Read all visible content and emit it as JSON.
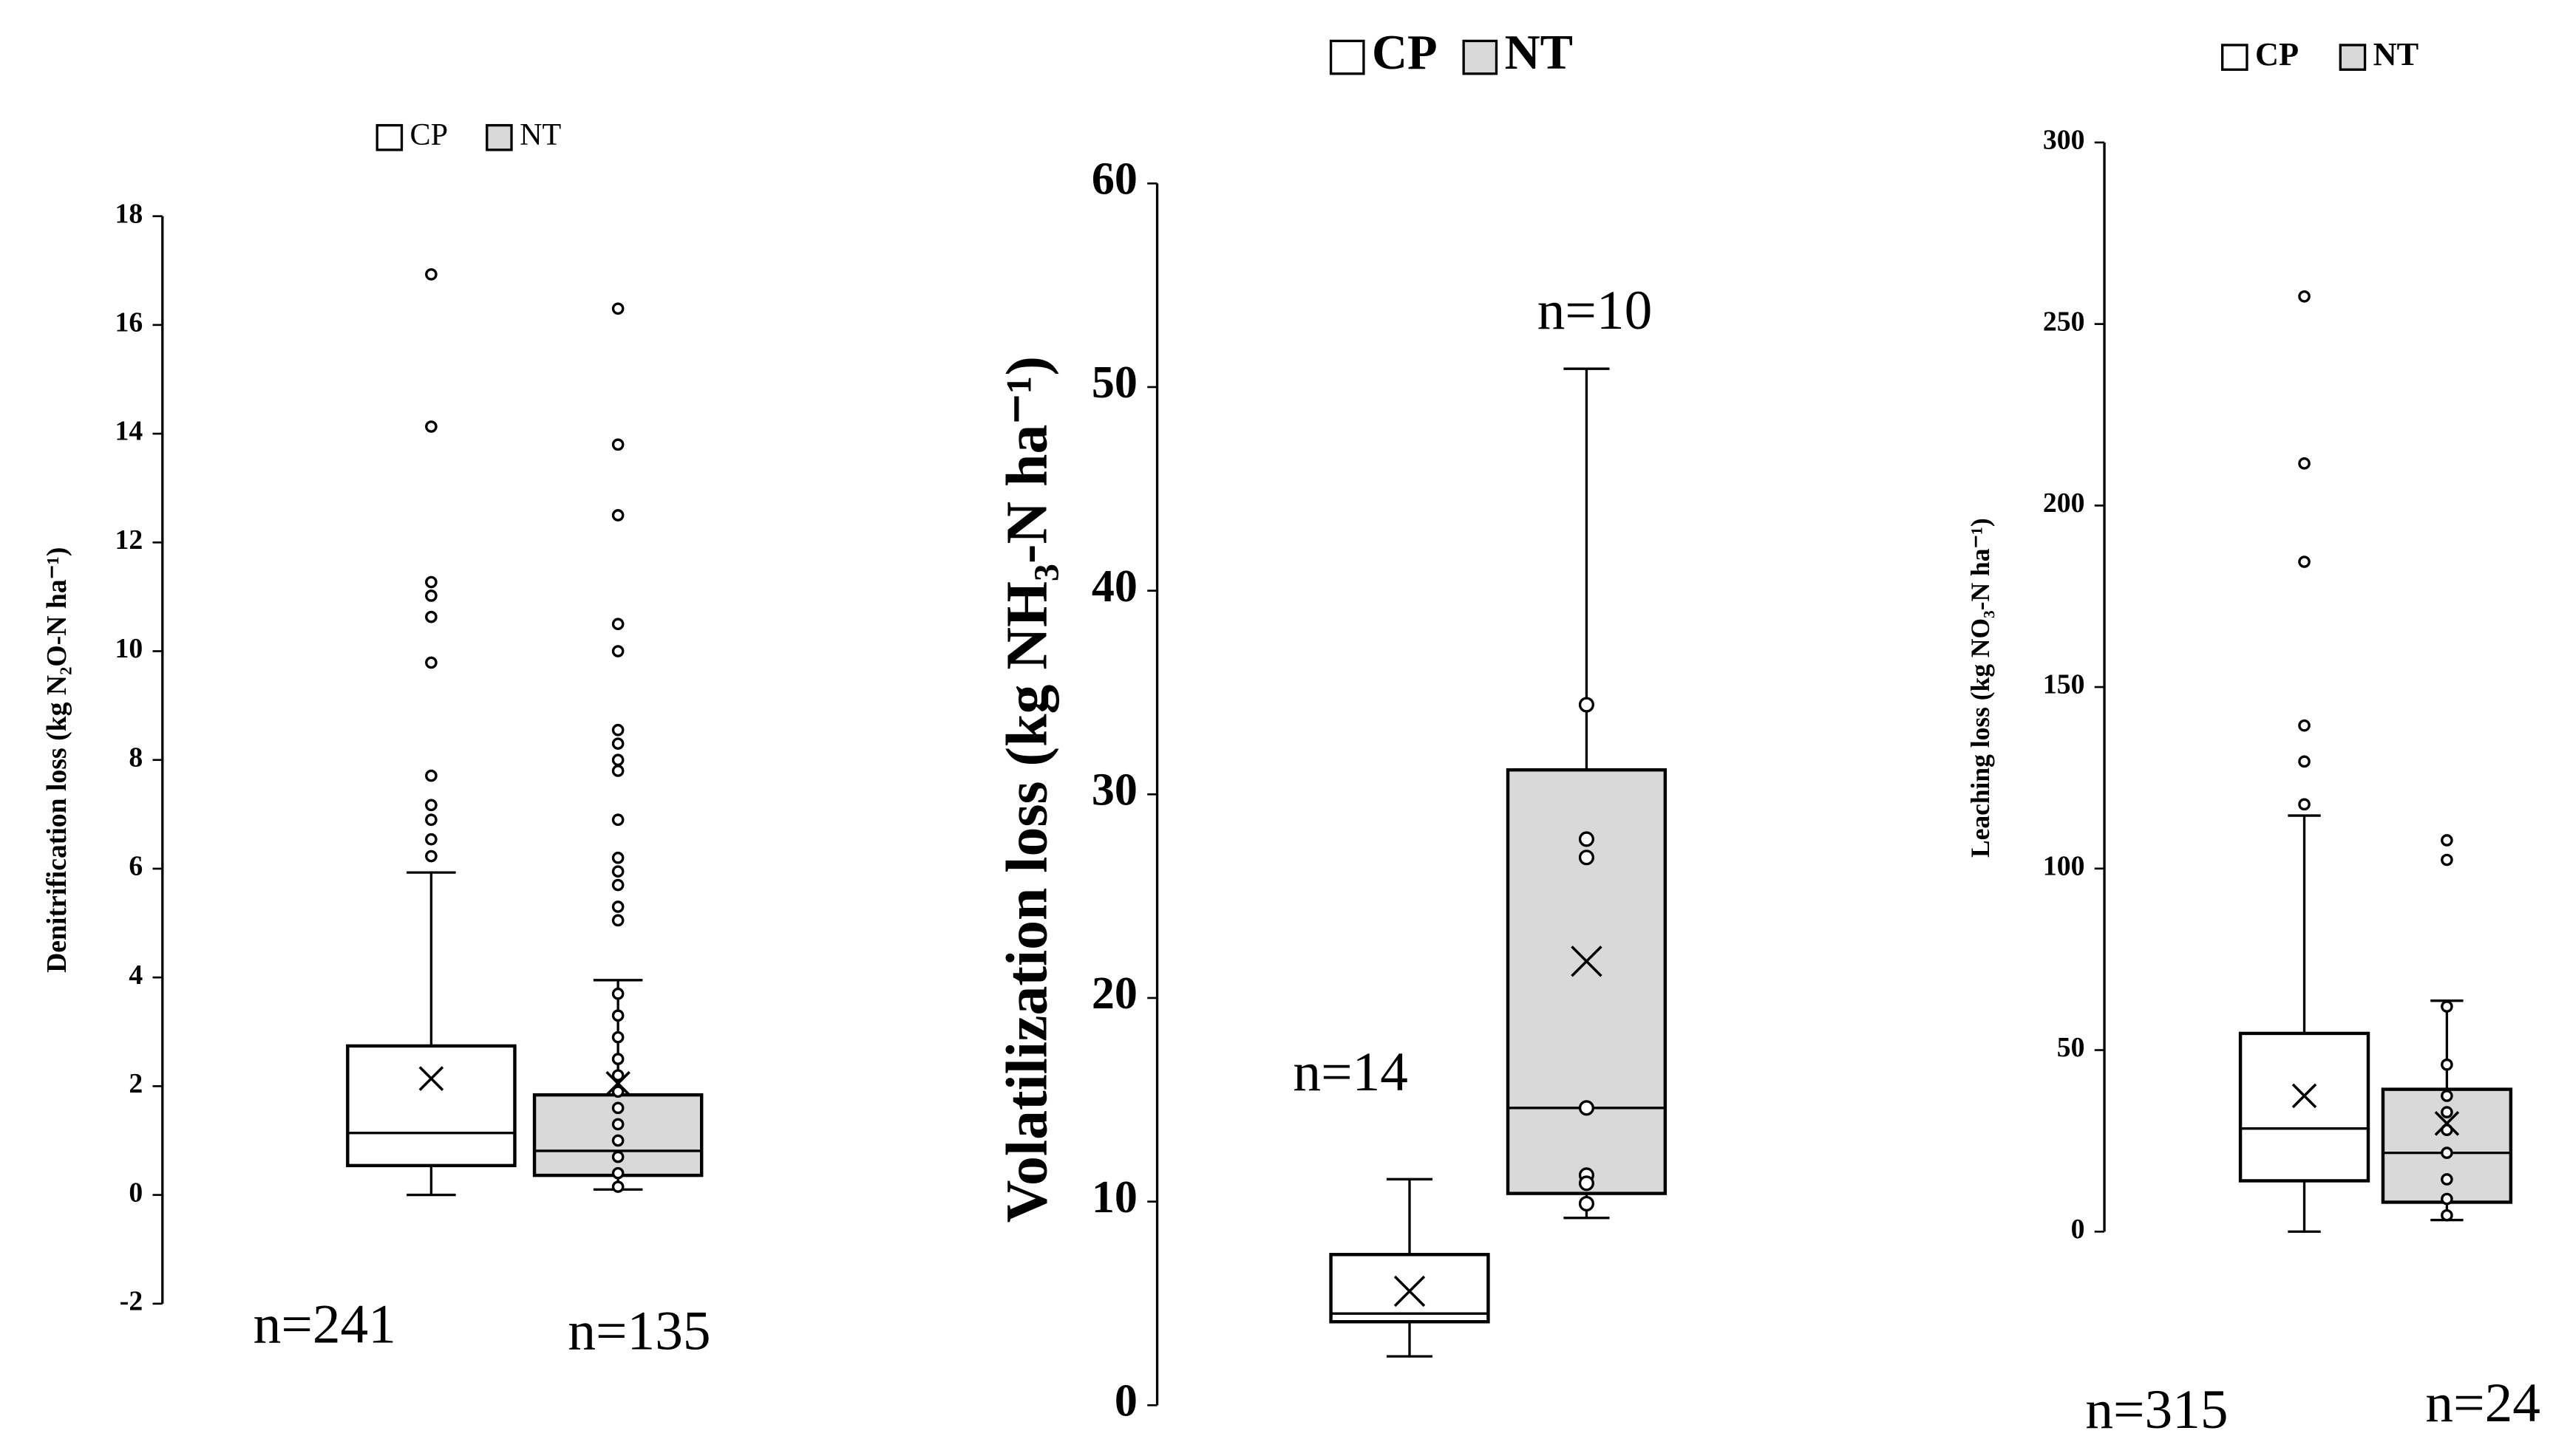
{
  "chart_data": [
    {
      "type": "box",
      "ylabel": "Denitrification loss (kg N₂O-N ha⁻¹)",
      "ylim": [
        -2,
        18
      ],
      "yticks": [
        -2,
        0,
        2,
        4,
        6,
        8,
        10,
        12,
        14,
        16,
        18
      ],
      "series": [
        {
          "name": "CP",
          "color": "#ffffff",
          "n_label": "n=241",
          "min": 0,
          "q1": 0.54,
          "median": 1.14,
          "q3": 2.74,
          "max": 5.93,
          "mean": 2.14,
          "outliers": [
            16.93,
            14.13,
            11.27,
            11.02,
            10.63,
            9.79,
            7.71,
            7.17,
            6.9,
            6.54,
            6.23
          ]
        },
        {
          "name": "NT",
          "color": "#d9d9d9",
          "n_label": "n=135",
          "min": 0.1,
          "q1": 0.36,
          "median": 0.81,
          "q3": 1.84,
          "max": 3.95,
          "mean": 2.05,
          "outliers": [
            16.3,
            13.8,
            12.5,
            10.5,
            10.0,
            8.55,
            8.3,
            8.0,
            7.8,
            6.9,
            6.2,
            5.95,
            5.7,
            5.3,
            5.05,
            3.7,
            3.3,
            2.9,
            2.5,
            2.2,
            1.9,
            1.6,
            1.3,
            1.0,
            0.7,
            0.4,
            0.15
          ]
        }
      ]
    },
    {
      "type": "box",
      "ylabel": "Volatilization  loss (kg NH₃-N ha⁻¹)",
      "ylim": [
        0,
        60
      ],
      "yticks": [
        0,
        10,
        20,
        30,
        40,
        50,
        60
      ],
      "series": [
        {
          "name": "CP",
          "color": "#ffffff",
          "n_label": "n=14",
          "min": 2.4,
          "q1": 4.1,
          "median": 4.5,
          "q3": 7.4,
          "max": 11.1,
          "mean": 5.6,
          "outliers": []
        },
        {
          "name": "NT",
          "color": "#d9d9d9",
          "n_label": "n=10",
          "min": 9.2,
          "q1": 10.4,
          "median": 14.6,
          "q3": 31.2,
          "max": 50.9,
          "mean": 21.8,
          "outliers": [
            34.4,
            27.8,
            26.9,
            14.6,
            11.3,
            10.9,
            9.9
          ]
        }
      ]
    },
    {
      "type": "box",
      "ylabel": "Leaching loss (kg NO₃-N ha⁻¹)",
      "ylim": [
        0,
        300
      ],
      "yticks": [
        0,
        50,
        100,
        150,
        200,
        250,
        300
      ],
      "series": [
        {
          "name": "CP",
          "color": "#ffffff",
          "n_label": "n=315",
          "min": 0,
          "q1": 14.0,
          "median": 28.4,
          "q3": 54.6,
          "max": 114.6,
          "mean": 37.4,
          "outliers": [
            257.6,
            211.6,
            184.5,
            139.4,
            129.5,
            117.7
          ]
        },
        {
          "name": "NT",
          "color": "#d9d9d9",
          "n_label": "n=24",
          "min": 3.2,
          "q1": 8.1,
          "median": 21.7,
          "q3": 39.2,
          "max": 63.6,
          "mean": 29.8,
          "outliers": [
            107.8,
            102.4,
            62,
            46,
            37.4,
            32.9,
            28,
            21.7,
            14.4,
            9,
            4.5
          ]
        }
      ]
    }
  ]
}
